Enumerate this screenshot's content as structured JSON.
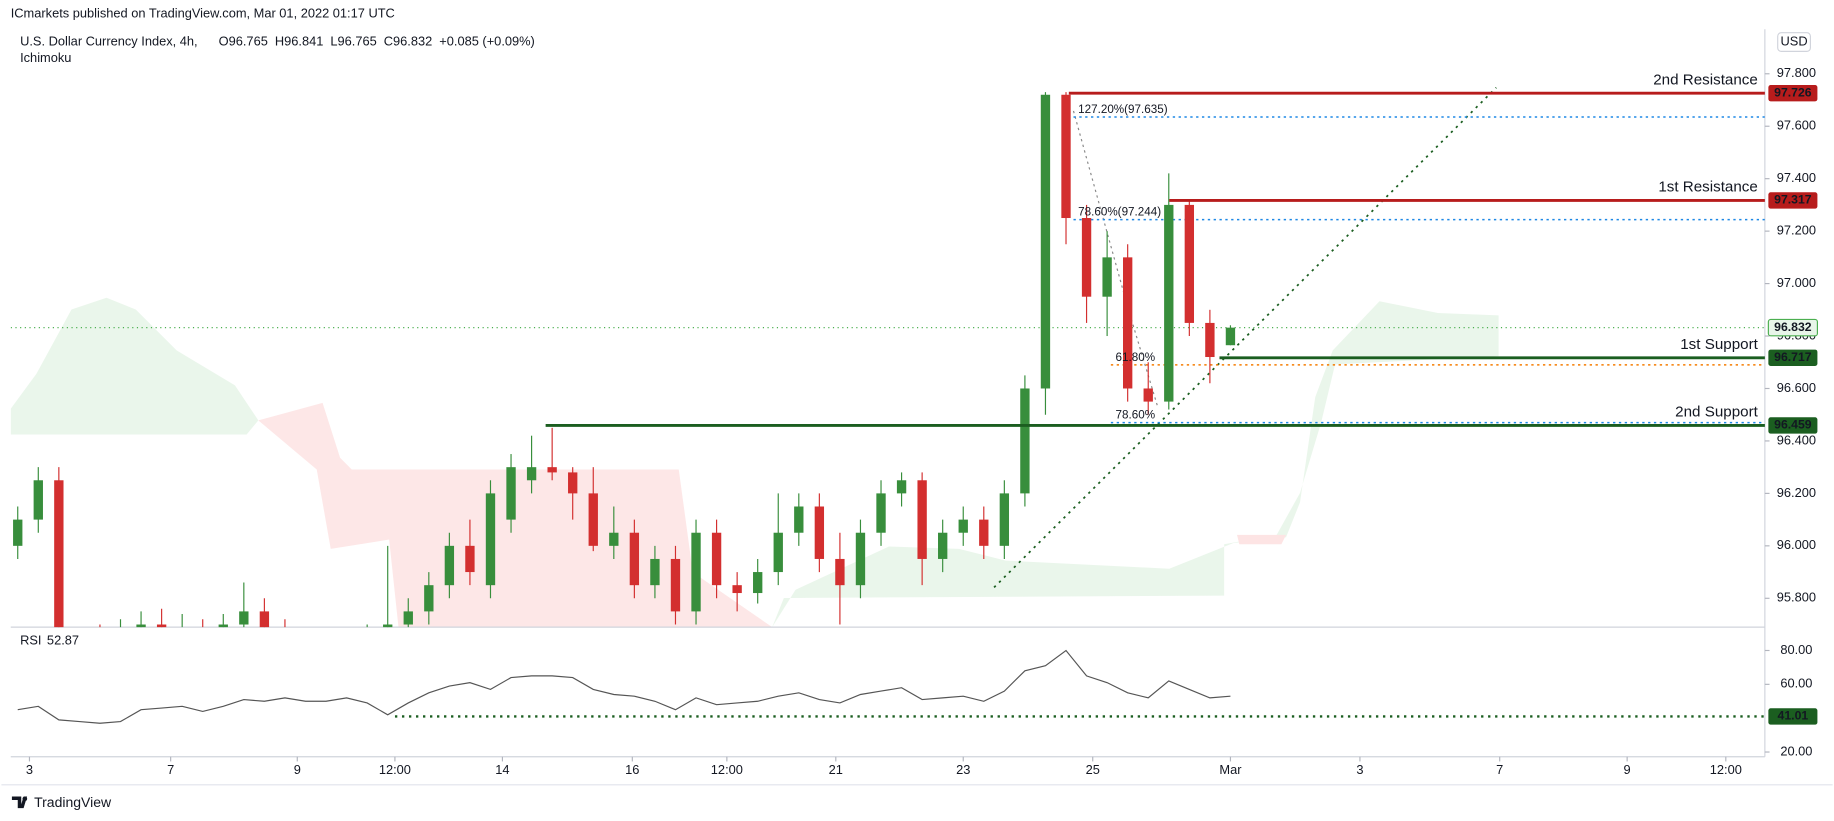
{
  "header": {
    "publisher": "ICmarkets published on TradingView.com, Mar 01, 2022 01:17 UTC",
    "currency": "USD"
  },
  "footer": {
    "brand": "TradingView"
  },
  "chart_data": [
    {
      "type": "candlestick",
      "title": "U.S. Dollar Currency Index, 4h,",
      "indicator": "Ichimoku",
      "ohlc_legend": [
        "O96.765",
        "H96.841",
        "L96.765",
        "C96.832",
        "+0.085 (+0.09%)"
      ],
      "categories": [
        null,
        null,
        null,
        null,
        null,
        null,
        null,
        null,
        null,
        null,
        null,
        null,
        null,
        null,
        null,
        null,
        null,
        null,
        null,
        null,
        null,
        null,
        null,
        null,
        null,
        null,
        null,
        null,
        null,
        null,
        null,
        null,
        null,
        null,
        null,
        null,
        null,
        null,
        null,
        null,
        null,
        null,
        null,
        null,
        null,
        null,
        null,
        null,
        null,
        null,
        null,
        null,
        null,
        null,
        null,
        null,
        null,
        null,
        null,
        null
      ],
      "open": [
        96.0,
        96.1,
        96.25,
        95.5,
        95.6,
        95.55,
        95.65,
        95.7,
        95.62,
        95.68,
        95.6,
        95.7,
        95.75,
        95.68,
        95.62,
        95.55,
        95.6,
        95.58,
        95.65,
        95.7,
        95.75,
        95.85,
        96.0,
        95.85,
        96.1,
        96.25,
        96.3,
        96.28,
        96.2,
        96.0,
        96.05,
        95.85,
        95.95,
        95.75,
        96.05,
        95.85,
        95.82,
        95.9,
        96.05,
        96.15,
        95.95,
        95.85,
        96.05,
        96.2,
        96.25,
        95.95,
        96.05,
        96.1,
        96.0,
        96.2,
        96.6,
        97.72,
        97.25,
        96.95,
        97.1,
        96.6,
        96.55,
        97.3,
        96.85,
        96.765
      ],
      "high": [
        96.15,
        96.3,
        96.3,
        95.65,
        95.7,
        95.72,
        95.75,
        95.76,
        95.74,
        95.72,
        95.74,
        95.86,
        95.8,
        95.72,
        95.66,
        95.65,
        95.66,
        95.7,
        96.0,
        95.8,
        95.9,
        96.05,
        96.1,
        96.25,
        96.35,
        96.42,
        96.45,
        96.3,
        96.3,
        96.15,
        96.1,
        96.0,
        96.0,
        96.1,
        96.1,
        95.9,
        95.95,
        96.2,
        96.2,
        96.2,
        96.05,
        96.1,
        96.25,
        96.28,
        96.28,
        96.1,
        96.15,
        96.15,
        96.25,
        96.65,
        97.73,
        97.73,
        97.3,
        97.2,
        97.15,
        96.7,
        97.42,
        97.32,
        96.9,
        96.841
      ],
      "low": [
        95.95,
        96.05,
        95.4,
        95.45,
        95.5,
        95.5,
        95.6,
        95.58,
        95.58,
        95.55,
        95.56,
        95.65,
        95.6,
        95.55,
        95.5,
        95.48,
        95.52,
        95.55,
        95.6,
        95.65,
        95.7,
        95.8,
        95.85,
        95.8,
        96.05,
        96.2,
        96.25,
        96.1,
        95.98,
        95.95,
        95.8,
        95.8,
        95.7,
        95.7,
        95.8,
        95.75,
        95.78,
        95.85,
        96.0,
        95.9,
        95.7,
        95.8,
        96.0,
        96.15,
        95.85,
        95.9,
        96.0,
        95.95,
        95.95,
        96.15,
        96.5,
        97.15,
        96.85,
        96.8,
        96.55,
        96.5,
        96.52,
        96.8,
        96.62,
        96.765
      ],
      "close": [
        96.1,
        96.25,
        95.5,
        95.6,
        95.55,
        95.65,
        95.7,
        95.62,
        95.68,
        95.6,
        95.7,
        95.75,
        95.68,
        95.62,
        95.55,
        95.6,
        95.58,
        95.65,
        95.7,
        95.75,
        95.85,
        96.0,
        95.9,
        96.2,
        96.3,
        96.3,
        96.28,
        96.2,
        96.0,
        96.05,
        95.85,
        95.95,
        95.75,
        96.05,
        95.85,
        95.82,
        95.9,
        96.05,
        96.15,
        95.95,
        95.85,
        96.05,
        96.2,
        96.25,
        95.95,
        96.05,
        96.1,
        96.0,
        96.2,
        96.6,
        97.72,
        97.25,
        96.95,
        97.1,
        96.6,
        96.55,
        97.3,
        96.85,
        96.72,
        96.832
      ],
      "up_color": "#388e3c",
      "down_color": "#d32f2f",
      "ylim": [
        95.69,
        97.97
      ],
      "yticks": [
        {
          "value": 95.8,
          "label": "95.800"
        },
        {
          "value": 96.0,
          "label": "96.000"
        },
        {
          "value": 96.2,
          "label": "96.200"
        },
        {
          "value": 96.4,
          "label": "96.400"
        },
        {
          "value": 96.6,
          "label": "96.600"
        },
        {
          "value": 96.8,
          "label": "96.800"
        },
        {
          "value": 97.0,
          "label": "97.000"
        },
        {
          "value": 97.2,
          "label": "97.200"
        },
        {
          "value": 97.4,
          "label": "97.400"
        },
        {
          "value": 97.6,
          "label": "97.600"
        },
        {
          "value": 97.8,
          "label": "97.800"
        }
      ],
      "xlim": [
        -0.34,
        85.0
      ],
      "xticks": [
        {
          "value": 0.57,
          "label": "3"
        },
        {
          "value": 7.44,
          "label": "7"
        },
        {
          "value": 13.6,
          "label": "9"
        },
        {
          "value": 18.35,
          "label": "12:00"
        },
        {
          "value": 23.58,
          "label": "14"
        },
        {
          "value": 29.9,
          "label": "16"
        },
        {
          "value": 34.5,
          "label": "12:00"
        },
        {
          "value": 39.8,
          "label": "21"
        },
        {
          "value": 46.0,
          "label": "23"
        },
        {
          "value": 52.3,
          "label": "25"
        },
        {
          "value": 59.0,
          "label": "Mar"
        },
        {
          "value": 65.3,
          "label": "3"
        },
        {
          "value": 72.1,
          "label": "7"
        },
        {
          "value": 78.3,
          "label": "9"
        },
        {
          "value": 83.1,
          "label": "12:00"
        }
      ],
      "last_price": 96.832,
      "levels": [
        {
          "label": "2nd Resistance",
          "value": 97.726,
          "color": "#b71c1c"
        },
        {
          "label": "1st Resistance",
          "value": 97.317,
          "color": "#b71c1c"
        },
        {
          "label": "1st Support",
          "value": 96.717,
          "color": "#1b5e20"
        },
        {
          "label": "2nd Support",
          "value": 96.459,
          "color": "#1b5e20"
        }
      ],
      "fib_levels": [
        {
          "label": "127.20%(97.635)",
          "value": 97.635,
          "color": "#1e88e5"
        },
        {
          "label": "78.60%(97.244)",
          "value": 97.244,
          "color": "#1e88e5"
        },
        {
          "label": "61.80%",
          "value": 96.69,
          "color": "#f57c00"
        },
        {
          "label": "78.60%",
          "value": 96.47,
          "color": "#1e88e5"
        }
      ]
    },
    {
      "type": "line",
      "title": "RSI",
      "value_label": "52.87",
      "color": "#555555",
      "values": [
        45,
        47,
        39,
        38,
        37,
        38,
        45,
        46,
        47,
        44,
        47,
        51,
        50,
        52,
        50,
        50,
        52,
        49,
        42,
        49,
        55,
        59,
        61,
        57,
        64,
        65,
        65,
        64,
        57,
        54,
        53,
        50,
        45,
        52,
        48,
        49,
        50,
        53,
        55,
        51,
        49,
        54,
        56,
        58,
        51,
        52,
        53,
        50,
        56,
        68,
        71,
        80,
        65,
        61,
        55,
        52,
        62,
        57,
        52,
        53
      ],
      "ylim": [
        17.2,
        93.8
      ],
      "yticks": [
        {
          "value": 20,
          "label": "20.00"
        },
        {
          "value": 60,
          "label": "60.00"
        },
        {
          "value": 80,
          "label": "80.00"
        }
      ],
      "level": 41.01,
      "level_color": "#1b5e20"
    }
  ]
}
